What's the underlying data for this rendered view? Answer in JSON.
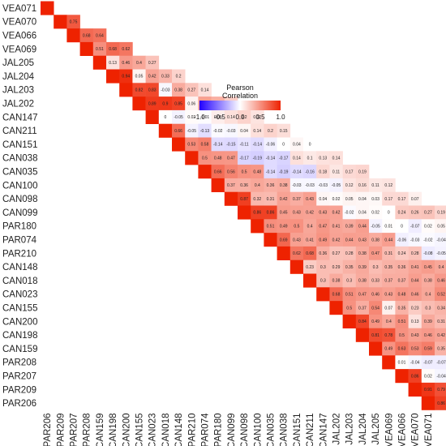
{
  "chart_data": {
    "type": "heatmap",
    "subtype": "lower-triangular correlation matrix",
    "row_order_top_to_bottom": [
      "VEA071",
      "VEA070",
      "VEA066",
      "VEA069",
      "JAL205",
      "JAL204",
      "JAL203",
      "JAL202",
      "CAN147",
      "CAN211",
      "CAN151",
      "CAN038",
      "CAN035",
      "CAN100",
      "CAN098",
      "CAN099",
      "PAR180",
      "PAR074",
      "PAR210",
      "CAN148",
      "CAN018",
      "CAN023",
      "CAN155",
      "CAN200",
      "CAN198",
      "CAN159",
      "PAR208",
      "PAR207",
      "PAR209",
      "PAR206"
    ],
    "column_order_left_to_right": [
      "PAR206",
      "PAR209",
      "PAR207",
      "PAR208",
      "CAN159",
      "CAN198",
      "CAN200",
      "CAN155",
      "CAN023",
      "CAN018",
      "CAN148",
      "PAR210",
      "PAR074",
      "PAR180",
      "CAN099",
      "CAN098",
      "CAN100",
      "CAN035",
      "CAN038",
      "CAN151",
      "CAN211",
      "CAN147",
      "JAL202",
      "JAL203",
      "JAL204",
      "JAL205",
      "VEA069",
      "VEA066",
      "VEA070",
      "VEA071"
    ],
    "legend": {
      "title": "Pearson\nCorrelation",
      "ticks": [
        "-1.0",
        "-0.5",
        "0.0",
        "0.5",
        "1.0"
      ],
      "range": [
        -1,
        1
      ],
      "low_color": "#2200ff",
      "mid_color": "#ffffff",
      "high_color": "#ee2200",
      "placement": "upper-middle"
    },
    "diagonal_value": 1,
    "values_by_row": {
      "VEA071": [],
      "VEA070": [
        0.75
      ],
      "VEA066": [
        0.68,
        0.64
      ],
      "VEA069": [
        0.51,
        0.68,
        0.62
      ],
      "JAL205": [
        0.13,
        0.46,
        0.4,
        0.27
      ],
      "JAL204": [
        0.94,
        0.05,
        0.42,
        0.33,
        0.2
      ],
      "JAL203": [
        0.82,
        0.83,
        -0.03,
        0.38,
        0.27,
        0.14
      ],
      "JAL202": [
        0.89,
        0.9,
        0.85,
        0.06,
        0.43,
        0.36,
        0.22
      ],
      "CAN147": [
        0,
        -0.05,
        0.02,
        -0.01,
        0.08,
        0.14,
        0.2,
        0.12
      ],
      "CAN211": [
        0.66,
        -0.05,
        -0.13,
        -0.02,
        -0.03,
        0.04,
        0.14,
        0.2,
        0.15
      ],
      "CAN151": [
        0.53,
        0.58,
        -0.14,
        -0.15,
        -0.11,
        -0.14,
        -0.06,
        0,
        0.04,
        0
      ],
      "CAN038": [
        0.5,
        0.48,
        0.47,
        -0.17,
        -0.19,
        -0.14,
        -0.17,
        0.14,
        0.1,
        0.13,
        0.14
      ],
      "CAN035": [
        0.66,
        0.56,
        0.5,
        0.48,
        -0.14,
        -0.19,
        -0.14,
        -0.16,
        0.18,
        0.11,
        0.17,
        0.19
      ],
      "CAN100": [
        0.37,
        0.36,
        0.4,
        0.36,
        0.38,
        -0.03,
        -0.03,
        -0.03,
        -0.05,
        0.12,
        0.16,
        0.11,
        0.12
      ],
      "CAN098": [
        0.87,
        0.32,
        0.31,
        0.42,
        0.37,
        0.43,
        0.04,
        0.02,
        0.05,
        0.04,
        0.03,
        0.17,
        0.17,
        0.07
      ],
      "CAN099": [
        0.86,
        0.86,
        0.45,
        0.43,
        0.42,
        0.43,
        0.42,
        -0.02,
        0.04,
        0.02,
        0,
        0.24,
        0.26,
        0.27,
        0.19
      ],
      "PAR180": [
        0.51,
        0.49,
        0.5,
        0.4,
        0.47,
        0.41,
        0.39,
        0.44,
        -0.05,
        0.01,
        0,
        -0.07,
        0.02,
        0.05,
        0.05,
        0.04
      ],
      "PAR074": [
        0.69,
        0.43,
        0.41,
        0.49,
        0.42,
        0.44,
        0.43,
        0.38,
        0.44,
        -0.06,
        -0.03,
        -0.02,
        -0.04,
        -0.05,
        -0.04,
        -0.04,
        -0.01
      ],
      "PAR210": [
        0.62,
        0.68,
        0.36,
        0.27,
        0.28,
        0.38,
        0.47,
        0.31,
        0.24,
        0.28,
        -0.08,
        -0.05,
        -0.01,
        -0.06,
        0.01,
        0.04,
        -0.01,
        -0.01
      ],
      "CAN148": [
        0.23,
        0.3,
        0.29,
        0.35,
        0.39,
        0.3,
        0.35,
        0.36,
        0.41,
        0.45,
        0.4,
        -0.07,
        -0.08,
        -0.06,
        -0.08,
        -0.11,
        0.02,
        -0.11,
        -0.13
      ],
      "CAN018": [
        0.3,
        0.38,
        0.3,
        0.38,
        0.33,
        0.37,
        0.37,
        0.44,
        0.38,
        0.46,
        0.42,
        -0.15,
        -0.16,
        -0.12,
        -0.18,
        -0.01,
        0.03,
        0.04,
        -0.11,
        0.1
      ],
      "CAN023": [
        0.68,
        0.51,
        0.47,
        0.46,
        0.43,
        0.48,
        0.46,
        0.4,
        0.52,
        0.55,
        0.48,
        0.4,
        -0.04,
        0.01,
        -0.03,
        -0.03,
        -0.05,
        -0.04,
        0.11,
        0.08,
        0.08
      ],
      "CAN155": [
        0.5,
        0.37,
        0.54,
        0.07,
        0.35,
        0.23,
        0.3,
        0.34,
        0.23,
        0.43,
        0.56,
        0.44,
        0.25,
        0.02,
        -0.03,
        0.04,
        0.02,
        -0.11,
        -0.02,
        -0.11,
        0.1,
        0.1
      ],
      "CAN200": [
        0.84,
        0.49,
        0.4,
        0.51,
        0.13,
        0.39,
        0.31,
        0.39,
        0.31,
        0.31,
        0.46,
        0.73,
        0.75,
        0.09,
        0.03,
        0.1,
        0.08,
        -0.03,
        -0.03,
        0.07,
        0.19,
        0.06,
        0.04
      ],
      "CAN198": [
        0.81,
        0.78,
        0.5,
        0.43,
        0.46,
        0.42,
        0.32,
        0.31,
        0.37,
        0.31,
        0.47,
        0.41,
        0.78,
        0.82,
        0.06,
        -0.03,
        0.02,
        -0.04,
        0.01,
        0.08,
        0.16,
        0.08,
        0.06,
        0.02
      ],
      "CAN159": [
        0.49,
        0.63,
        0.53,
        0.59,
        0.35,
        0.51,
        0.11,
        0.41,
        0.29,
        0.26,
        0.34,
        0.28,
        0.37,
        0.23,
        0.43,
        0.48,
        0.39,
        -0.03,
        -0.02,
        -0.01,
        -0.13,
        0.01,
        0.05,
        0.03,
        0.01,
        0.01
      ],
      "PAR208": [
        0.01,
        -0.04,
        -0.07,
        -0.07,
        0,
        -0.19,
        -0.13,
        0.18,
        0.39,
        0.35,
        0,
        0.06,
        0.16,
        0.05,
        0.06,
        0.15,
        -0.11,
        -0.11,
        0.02,
        -0.42,
        -0.26,
        -0.38,
        -0.36,
        -0.5,
        -0.46,
        -0.45,
        -0.39
      ],
      "PAR207": [
        0.86,
        0.02,
        -0.04,
        -0.09,
        -0.07,
        -0.05,
        -0.24,
        -0.19,
        0.11,
        0.33,
        0.3,
        -0.06,
        0.03,
        -0.02,
        -0.02,
        0.06,
        -0.06,
        0.09,
        -0.02,
        -0.38,
        -0.24,
        -0.35,
        -0.34,
        -0.58,
        -0.47,
        -0.51,
        -0.42
      ],
      "PAR209": [
        0.91,
        0.79,
        0.02,
        -0.06,
        -0.12,
        -0.12,
        -0.07,
        -0.26,
        -0.22,
        0.11,
        0.31,
        0.25,
        0.02,
        0.08,
        0.03,
        0.1,
        0.06,
        0.14,
        -0.14,
        0.02,
        -0.36,
        -0.21,
        -0.3,
        -0.3,
        -0.61,
        -0.46,
        -0.48,
        -0.42
      ],
      "PAR206": [
        0.86,
        0.91,
        0.88,
        0.05,
        -0.05,
        -0.06,
        -0.01,
        0.01,
        -0.23,
        -0.14,
        0.09,
        0.31,
        0.3,
        -0.05,
        0.07,
        0.14,
        -0.05,
        -0.06,
        0.17,
        -0.13,
        0.05,
        -0.44,
        -0.3,
        -0.4,
        -0.41,
        -0.65,
        -0.46,
        -0.53,
        -0.45
      ]
    }
  }
}
